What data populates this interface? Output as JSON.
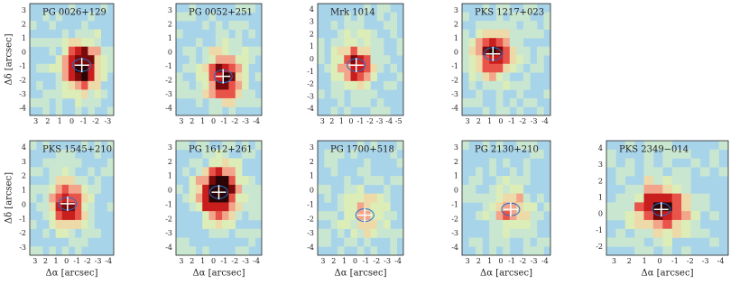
{
  "figure": {
    "y_label": "Δδ [arcsec]",
    "x_label": "Δα [arcsec]",
    "panels": [
      {
        "title": "PG 0026+129",
        "xticks": [
          "3",
          "2",
          "1",
          "0",
          "-1",
          "-2",
          "-3"
        ],
        "yticks": [
          "3",
          "2",
          "1",
          "0",
          "-1",
          "-2",
          "-3",
          "-4"
        ]
      },
      {
        "title": "PG 0052+251",
        "xticks": [
          "3",
          "2",
          "1",
          "0",
          "-1",
          "-2",
          "-3",
          "-4"
        ],
        "yticks": [
          "3",
          "2",
          "1",
          "0",
          "-1",
          "-2",
          "-3",
          "-4"
        ]
      },
      {
        "title": "Mrk 1014",
        "xticks": [
          "3",
          "2",
          "1",
          "0",
          "-1",
          "-2",
          "-3",
          "-4",
          "-5"
        ],
        "yticks": [
          "4",
          "3",
          "2",
          "1",
          "0",
          "-1",
          "-2",
          "-3",
          "-4"
        ]
      },
      {
        "title": "PKS 1217+023",
        "xticks": [
          "3",
          "2",
          "1",
          "0",
          "-1",
          "-2",
          "-3",
          "-4"
        ],
        "yticks": [
          "3",
          "2",
          "1",
          "0",
          "-1",
          "-2",
          "-3",
          "-4"
        ]
      },
      {
        "title": "PKS 1545+210",
        "xticks": [
          "3",
          "2",
          "1",
          "0",
          "-1",
          "-2",
          "-3",
          "-4"
        ],
        "yticks": [
          "4",
          "3",
          "2",
          "1",
          "0",
          "-1",
          "-2",
          "-3"
        ]
      },
      {
        "title": "PG 1612+261",
        "xticks": [
          "3",
          "2",
          "1",
          "0",
          "-1",
          "-2",
          "-3",
          "-4"
        ],
        "yticks": [
          "3",
          "2",
          "1",
          "0",
          "-1",
          "-2",
          "-3",
          "-4"
        ]
      },
      {
        "title": "PG 1700+518",
        "xticks": [
          "3",
          "2",
          "1",
          "0",
          "-1",
          "-2",
          "-3",
          "-4"
        ],
        "yticks": [
          "3",
          "2",
          "1",
          "0",
          "-1",
          "-2",
          "-3",
          "-4"
        ]
      },
      {
        "title": "PG 2130+210",
        "xticks": [
          "3",
          "2",
          "1",
          "0",
          "-1",
          "-2",
          "-3",
          "-4"
        ],
        "yticks": [
          "3",
          "2",
          "1",
          "0",
          "-1",
          "-2",
          "-3",
          "-4"
        ]
      },
      {
        "title": "PKS 2349−014",
        "xticks": [
          "3",
          "2",
          "1",
          "0",
          "-1",
          "-2",
          "-3",
          "-4"
        ],
        "yticks": [
          "4",
          "3",
          "2",
          "1",
          "0",
          "-1",
          "-2"
        ]
      }
    ]
  }
}
